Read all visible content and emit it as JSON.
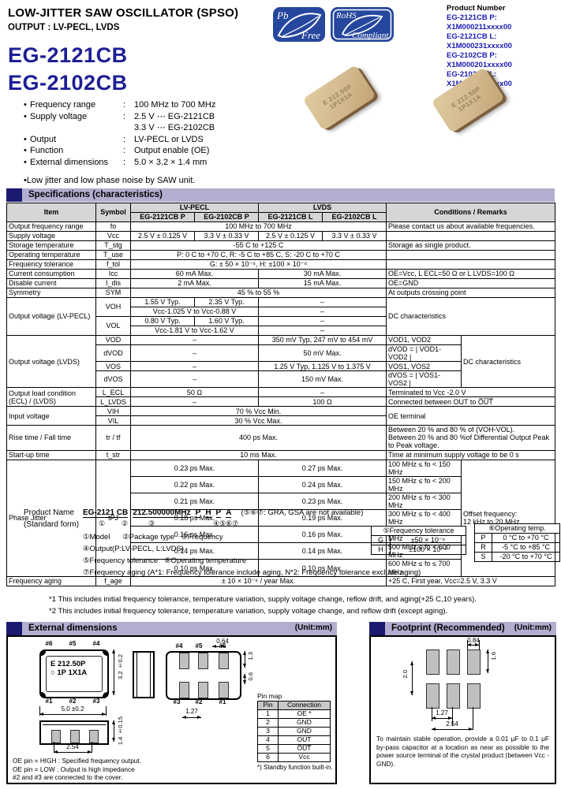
{
  "colors": {
    "model_navy": "#1e1e96",
    "product_number_blue": "#1b1bb4",
    "section_bar": "#b3aed0",
    "section_square": "#1a1a70",
    "badge_blue": "#26479e",
    "table_header_gray": "#d6d6d6"
  },
  "header": {
    "title": "LOW-JITTER SAW OSCILLATOR (SPSO)",
    "subtitle": "OUTPUT : LV-PECL, LVDS",
    "models": [
      "EG-2121CB",
      "EG-2102CB"
    ],
    "badges": {
      "pb": {
        "top": "Pb",
        "bottom": "Free"
      },
      "rohs": {
        "top": "RoHS",
        "bottom": "Compliant"
      }
    },
    "product_number_label": "Product Number",
    "product_numbers": [
      "EG-2121CB P: X1M000211xxxx00",
      "EG-2121CB L: X1M000231xxxx00",
      "EG-2102CB P: X1M000201xxxx00",
      "EG-2102CB L: X1M000221xxxx00"
    ]
  },
  "features": {
    "rows": [
      {
        "bullet": "•",
        "label": "Frequency range",
        "colon": ":",
        "value": "100 MHz to 700 MHz"
      },
      {
        "bullet": "•",
        "label": "Supply voltage",
        "colon": ":",
        "value": "2.5 V ⋯ EG-2121CB"
      },
      {
        "bullet": "",
        "label": "",
        "colon": "",
        "value": "3.3 V ⋯ EG-2102CB"
      },
      {
        "bullet": "•",
        "label": "Output",
        "colon": ":",
        "value": "LV-PECL or LVDS"
      },
      {
        "bullet": "•",
        "label": "Function",
        "colon": ":",
        "value": "Output enable (OE)"
      },
      {
        "bullet": "•",
        "label": "External dimensions",
        "colon": ":",
        "value": "5.0 × 3.2 × 1.4 mm"
      }
    ],
    "note": "•Low jitter and low phase noise by SAW unit."
  },
  "chip_label": {
    "line1": "E 212.50P",
    "line2": "1P1X1A"
  },
  "sections": {
    "specs": "Specifications (characteristics)",
    "external": "External dimensions",
    "footprint": "Footprint (Recommended)",
    "unit": "(Unit:mm)"
  },
  "tables": {
    "spec": [
      [
        {
          "t": "Item",
          "r": 2,
          "h": 1
        },
        {
          "t": "Symbol",
          "r": 2,
          "h": 1
        },
        {
          "t": "LV-PECL",
          "c": 2,
          "h": 1
        },
        {
          "t": "LVDS",
          "c": 2,
          "h": 1
        },
        {
          "t": "Conditions / Remarks",
          "c": 2,
          "r": 2,
          "h": 1
        }
      ],
      [
        {
          "t": "EG-2121CB P",
          "h": 1
        },
        {
          "t": "EG-2102CB P",
          "h": 1
        },
        {
          "t": "EG-2121CB L",
          "h": 1
        },
        {
          "t": "EG-2102CB L",
          "h": 1
        }
      ],
      [
        {
          "t": "Output frequency range",
          "a": "l"
        },
        {
          "t": "fo"
        },
        {
          "t": "100 MHz to 700 MHz",
          "c": 4
        },
        {
          "t": "Please contact us about available frequencies.",
          "c": 2,
          "a": "l"
        }
      ],
      [
        {
          "t": "Supply voltage",
          "a": "l"
        },
        {
          "t": "Vcc"
        },
        {
          "t": "2.5 V ± 0.125 V"
        },
        {
          "t": "3.3 V ± 0.33 V"
        },
        {
          "t": "2.5 V ± 0.125 V"
        },
        {
          "t": "3.3 V ± 0.33 V"
        },
        {
          "t": "",
          "c": 2
        }
      ],
      [
        {
          "t": "Storage temperature",
          "a": "l"
        },
        {
          "t": "T_stg"
        },
        {
          "t": "-55 C to +125 C",
          "c": 4
        },
        {
          "t": "Storage as single product.",
          "c": 2,
          "a": "l"
        }
      ],
      [
        {
          "t": "Operating temperature",
          "a": "l"
        },
        {
          "t": "T_use"
        },
        {
          "t": "P: 0 C to +70 C, R: -5 C to +85 C, S: -20 C to +70 C",
          "c": 4
        },
        {
          "t": "",
          "c": 2
        }
      ],
      [
        {
          "t": "Frequency tolerance",
          "a": "l"
        },
        {
          "t": "f_tol"
        },
        {
          "t": "G: ± 50 × 10⁻⁶, H: ±100 × 10⁻⁶",
          "c": 4
        },
        {
          "t": "",
          "c": 2
        }
      ],
      [
        {
          "t": "Current consumption",
          "a": "l"
        },
        {
          "t": "Icc"
        },
        {
          "t": "60 mA Max.",
          "c": 2
        },
        {
          "t": "30 mA Max.",
          "c": 2
        },
        {
          "t": "OE=Vcc, L ECL=50 Ω or L LVDS=100 Ω",
          "c": 2,
          "a": "l"
        }
      ],
      [
        {
          "t": "Disable current",
          "a": "l"
        },
        {
          "t": "I_dis"
        },
        {
          "t": "2 mA Max.",
          "c": 2
        },
        {
          "t": "15 mA Max.",
          "c": 2
        },
        {
          "t": "OE=GND",
          "c": 2,
          "a": "l"
        }
      ],
      [
        {
          "t": "Symmetry",
          "a": "l"
        },
        {
          "t": "SYM"
        },
        {
          "t": "45 % to 55 %",
          "c": 4
        },
        {
          "t": "At outputs crossing point",
          "c": 2,
          "a": "l"
        }
      ],
      [
        {
          "t": "Output voltage (LV-PECL)",
          "r": 4,
          "a": "l"
        },
        {
          "t": "VOH",
          "r": 2
        },
        {
          "t": "1.55 V Typ."
        },
        {
          "t": "2.35 V Typ."
        },
        {
          "t": "–",
          "c": 2
        },
        {
          "t": "DC characteristics",
          "c": 2,
          "r": 4,
          "a": "l"
        }
      ],
      [
        {
          "t": "Vcc-1.025 V to Vcc-0.88 V",
          "c": 2
        },
        {
          "t": "–",
          "c": 2
        }
      ],
      [
        {
          "t": "VOL",
          "r": 2
        },
        {
          "t": "0.80 V Typ."
        },
        {
          "t": "1.60 V Typ."
        },
        {
          "t": "–",
          "c": 2
        }
      ],
      [
        {
          "t": "Vcc-1.81 V to Vcc-1.62 V",
          "c": 2
        },
        {
          "t": "–",
          "c": 2
        }
      ],
      [
        {
          "t": "Output voltage (LVDS)",
          "r": 4,
          "a": "l"
        },
        {
          "t": "VOD"
        },
        {
          "t": "–",
          "c": 2
        },
        {
          "t": "350 mV Typ,  247 mV to 454 mV",
          "c": 2
        },
        {
          "t": "VOD1, VOD2",
          "a": "l"
        },
        {
          "t": "DC characteristics",
          "r": 4,
          "a": "l"
        }
      ],
      [
        {
          "t": "dVOD"
        },
        {
          "t": "–",
          "c": 2
        },
        {
          "t": "50 mV Max.",
          "c": 2
        },
        {
          "t": "dVOD = | VOD1-VOD2 |",
          "a": "l"
        }
      ],
      [
        {
          "t": "VOS"
        },
        {
          "t": "–",
          "c": 2
        },
        {
          "t": "1.25 V Typ,  1.125 V to 1.375 V",
          "c": 2
        },
        {
          "t": "VOS1, VOS2",
          "a": "l"
        }
      ],
      [
        {
          "t": "dVOS"
        },
        {
          "t": "–",
          "c": 2
        },
        {
          "t": "150 mV Max.",
          "c": 2
        },
        {
          "t": "dVOS = | VOS1-VOS2 |",
          "a": "l"
        }
      ],
      [
        {
          "t": "Output load condition\n (ECL) / (LVDS)",
          "r": 2,
          "a": "l"
        },
        {
          "t": "L_ECL"
        },
        {
          "t": "50 Ω",
          "c": 2
        },
        {
          "t": "–",
          "c": 2
        },
        {
          "t": "Terminated to Vcc -2.0 V",
          "c": 2,
          "a": "l"
        }
      ],
      [
        {
          "t": "L_LVDS"
        },
        {
          "t": "–",
          "c": 2
        },
        {
          "t": "100 Ω",
          "c": 2
        },
        {
          "t": "Connected between OUT to O̅U̅T̅",
          "c": 2,
          "a": "l"
        }
      ],
      [
        {
          "t": "Input voltage",
          "r": 2,
          "a": "l"
        },
        {
          "t": "VIH"
        },
        {
          "t": "70 % Vcc Min.",
          "c": 4
        },
        {
          "t": "OE terminal",
          "c": 2,
          "r": 2,
          "a": "l"
        }
      ],
      [
        {
          "t": "VIL"
        },
        {
          "t": "30 % Vcc Max.",
          "c": 4
        }
      ],
      [
        {
          "t": "Rise time / Fall time",
          "a": "l"
        },
        {
          "t": "tr / tf"
        },
        {
          "t": "400 ps Max.",
          "c": 4
        },
        {
          "t": "Between 20 % and 80 % of (VOH-VOL).\nBetween 20 % and 80 %of Differential Output Peak\nto Peak voltage.",
          "c": 2,
          "a": "l"
        }
      ],
      [
        {
          "t": "Start-up time",
          "a": "l"
        },
        {
          "t": "t_str"
        },
        {
          "t": "10 ms Max.",
          "c": 4
        },
        {
          "t": "Time at minimum supply voltage to be 0 s",
          "c": 2,
          "a": "l"
        }
      ],
      [
        {
          "t": "Phase Jitter",
          "r": 7,
          "a": "l"
        },
        {
          "t": "tPJ",
          "r": 7
        },
        {
          "t": "0.23 ps Max.",
          "c": 2
        },
        {
          "t": "0.27 ps Max.",
          "c": 2
        },
        {
          "t": "100 MHz ≤ fo < 150 MHz",
          "a": "l"
        },
        {
          "t": "Offset frequency:\n12 kHz to 20 MHz",
          "r": 7,
          "a": "l"
        }
      ],
      [
        {
          "t": "0.22 ps Max.",
          "c": 2
        },
        {
          "t": "0.24 ps Max.",
          "c": 2
        },
        {
          "t": "150 MHz ≤ fo < 200 MHz",
          "a": "l"
        }
      ],
      [
        {
          "t": "0.21 ps Max.",
          "c": 2
        },
        {
          "t": "0.23 ps Max.",
          "c": 2
        },
        {
          "t": "200 MHz ≤ fo < 300 MHz",
          "a": "l"
        }
      ],
      [
        {
          "t": "0.18 ps Max.",
          "c": 2
        },
        {
          "t": "0.19 ps Max.",
          "c": 2
        },
        {
          "t": "300 MHz ≤ fo < 400 MHz",
          "a": "l"
        }
      ],
      [
        {
          "t": "0.16 ps Max.",
          "c": 2
        },
        {
          "t": "0.16 ps Max.",
          "c": 2
        },
        {
          "t": "400 MHz ≤ fo < 500 MHz",
          "a": "l"
        }
      ],
      [
        {
          "t": "0.14 ps Max.",
          "c": 2
        },
        {
          "t": "0.14 ps Max.",
          "c": 2
        },
        {
          "t": "500 MHz ≤ fo < 600 MHz",
          "a": "l"
        }
      ],
      [
        {
          "t": "0.10 ps Max.",
          "c": 2
        },
        {
          "t": "0.10 ps Max.",
          "c": 2
        },
        {
          "t": "600 MHz ≤ fo ≤ 700 MHz",
          "a": "l"
        }
      ],
      [
        {
          "t": "Frequency aging",
          "a": "l"
        },
        {
          "t": "f_age"
        },
        {
          "t": "± 10 × 10⁻⁶ / year Max.",
          "c": 4
        },
        {
          "t": "+25 C, First year, Vcc=2.5 V, 3.3 V",
          "c": 2,
          "a": "l"
        }
      ]
    ],
    "tol": [
      [
        {
          "t": "⑤Frequency tolerance",
          "c": 2,
          "h": 1
        }
      ],
      [
        {
          "t": "G"
        },
        {
          "t": "±50 × 10⁻⁶"
        }
      ],
      [
        {
          "t": "H"
        },
        {
          "t": "±100 × 10⁻⁶"
        }
      ]
    ],
    "ot": [
      [
        {
          "t": "⑥Operating temp.",
          "c": 2,
          "h": 1
        }
      ],
      [
        {
          "t": "P"
        },
        {
          "t": "0 °C to +70 °C"
        }
      ],
      [
        {
          "t": "R"
        },
        {
          "t": "-5 °C to +85 °C"
        }
      ],
      [
        {
          "t": "S"
        },
        {
          "t": "-20 °C to +70 °C"
        }
      ]
    ],
    "pinmap": [
      [
        {
          "t": "Pin",
          "h": 1
        },
        {
          "t": "Connection",
          "h": 1
        }
      ],
      [
        {
          "t": "1"
        },
        {
          "t": "OE *"
        }
      ],
      [
        {
          "t": "2"
        },
        {
          "t": "GND"
        }
      ],
      [
        {
          "t": "3"
        },
        {
          "t": "GND"
        }
      ],
      [
        {
          "t": "4"
        },
        {
          "t": "OUT"
        }
      ],
      [
        {
          "t": "5"
        },
        {
          "t": "O̅U̅T̅"
        }
      ],
      [
        {
          "t": "6"
        },
        {
          "t": "Vcc"
        }
      ]
    ]
  },
  "product_name": {
    "label1": "Product Name",
    "label2": "(Standard form)",
    "segments": [
      "EG-2121 CB",
      "212.500000MHz",
      "P",
      "H",
      "P",
      "A"
    ],
    "suffix": "(⑤⑥⑦: GRA, GSA are not available)",
    "digits": [
      "①",
      "②",
      "③",
      "④⑤⑥⑦"
    ],
    "legend": [
      "①Model      ②Package type   ③Frequency",
      "④Output(P:LV-PECL, L:LVDS)",
      "⑤Frequency tolerance   ⑥Operating temperature",
      "⑦Frequency aging (A*1: Frequency tolerance include aging, N*2: Frequency tolerance exclude aging)"
    ]
  },
  "notes": {
    "n1": "*1    This includes initial frequency tolerance, temperature variation, supply voltage change, reflow drift, and aging(+25 C,10 years).",
    "n2": "*2    This includes initial frequency tolerance, temperature variation, supply voltage change, and reflow drift (except aging)."
  },
  "external": {
    "pins_top": [
      "#6",
      "#5",
      "#4"
    ],
    "pins_bottom": [
      "#1",
      "#2",
      "#3"
    ],
    "bv_pins_top": [
      "#4",
      "#5",
      "#6"
    ],
    "bv_pins_bottom": [
      "#3",
      "#2",
      "#1"
    ],
    "dim_width": "5.0 ±0.2",
    "dim_height": "3.2 ±0.2",
    "dim_thick": "1.4 ±0.15",
    "dim_pitch": "2.54",
    "dim_pad_w": "0.64",
    "dim_pad_pitch": "1.27",
    "dim_pad_h": "1.3",
    "dim_pad_gap": "0.6",
    "chip_line1": "E 212.50P",
    "chip_line2": "○ 1P 1X1A",
    "pinmap_caption": "Pin map",
    "pinmap_footnote": "*) Standby function built-in.",
    "notes": [
      "OE pin = HIGH : Specified frequency output.",
      "OE pin = LOW : Output is high impedance",
      "#2 and #3 are connected to the cover."
    ]
  },
  "footprint": {
    "dim_top": "0.84",
    "dim_right": "1.6",
    "dim_left": "2.0",
    "dim_p1": "1.27",
    "dim_p2": "2.54",
    "note": "To maintain stable operation, provide a 0.01 μF to 0.1 μF by-pass capacitor at a location as near as possible to the power source terminal of the crystal product (between Vcc - GND)."
  }
}
